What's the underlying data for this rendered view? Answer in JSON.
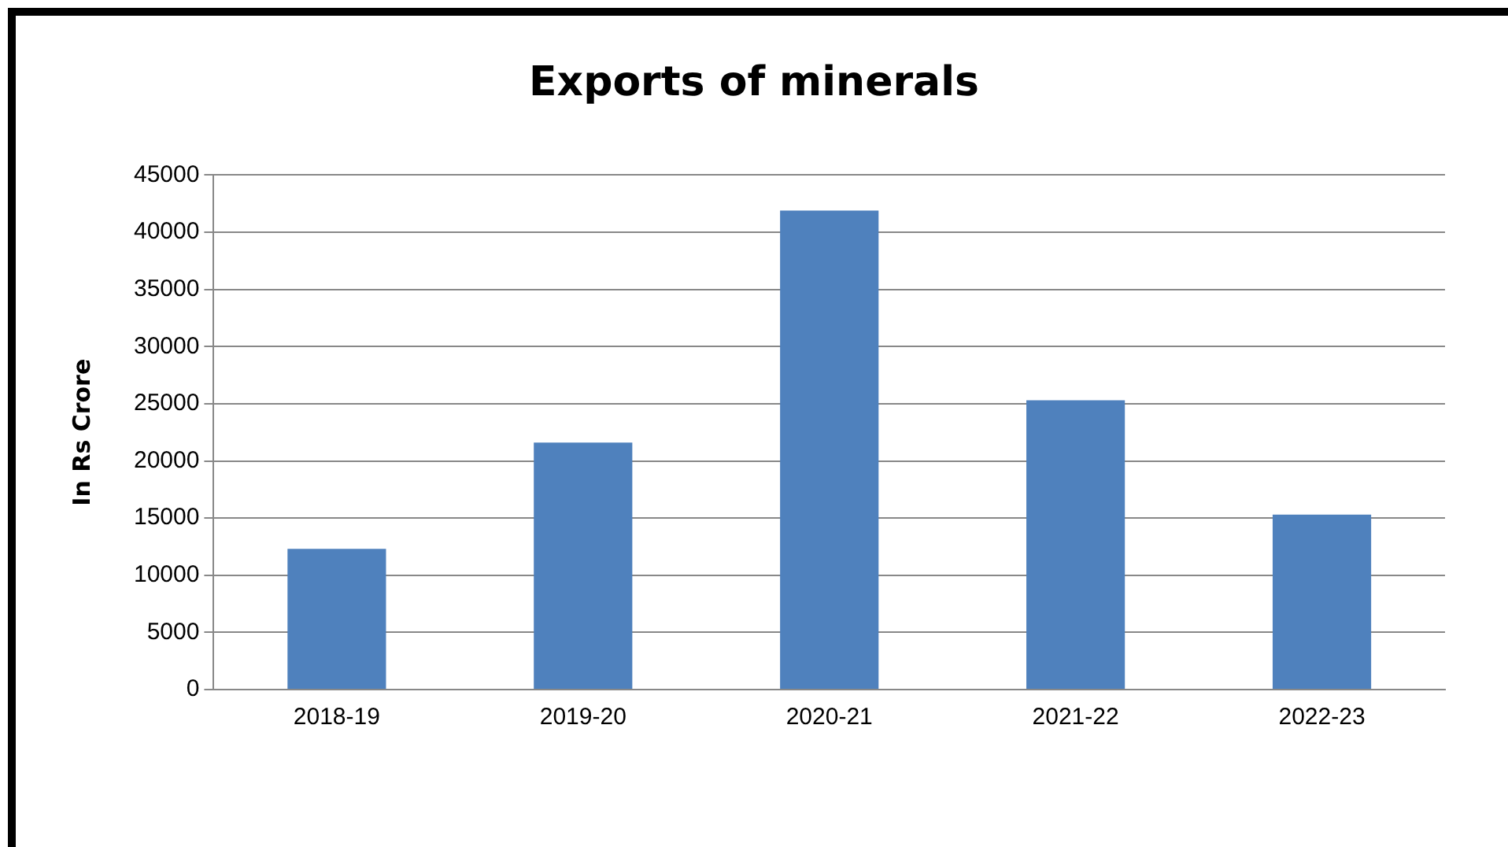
{
  "chart_data": {
    "type": "bar",
    "title": "Exports of minerals",
    "ylabel": "In Rs Crore",
    "categories": [
      "2018-19",
      "2019-20",
      "2020-21",
      "2021-22",
      "2022-23"
    ],
    "values": [
      12300,
      21600,
      41900,
      25300,
      15300
    ],
    "color": "#4f81bd",
    "ylim": [
      0,
      45000
    ],
    "yticks": [
      0,
      5000,
      10000,
      15000,
      20000,
      25000,
      30000,
      35000,
      40000,
      45000
    ],
    "grid": "y",
    "legend": false
  }
}
